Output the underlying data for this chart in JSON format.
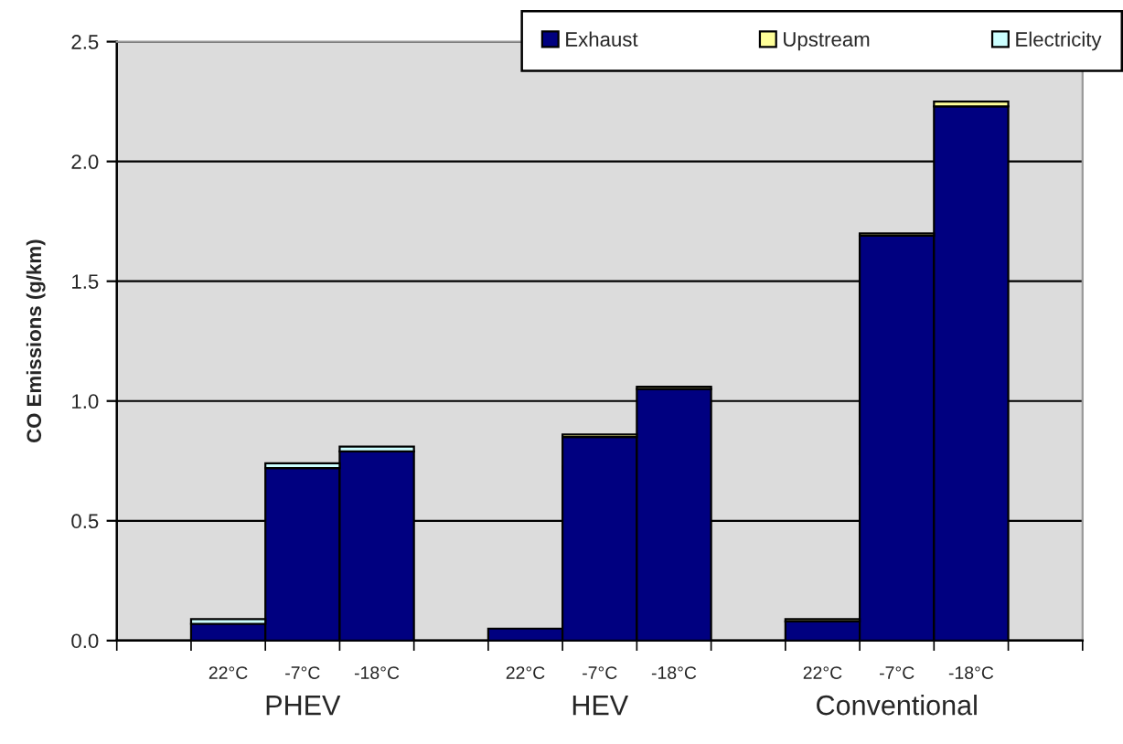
{
  "chart_data": {
    "type": "bar",
    "stacked": true,
    "ylabel": "CO Emissions (g/km)",
    "categories": [
      null,
      "22°C",
      "-7°C",
      "-18°C",
      null,
      "22°C",
      "-7°C",
      "-18°C",
      null,
      "22°C",
      "-7°C",
      "-18°C",
      null
    ],
    "series": [
      {
        "name": "Exhaust",
        "color": "#000080",
        "values": [
          null,
          0.07,
          0.72,
          0.79,
          null,
          0.05,
          0.85,
          1.05,
          null,
          0.08,
          1.69,
          2.23,
          null
        ]
      },
      {
        "name": "Upstream",
        "color": "#ffff99",
        "values": [
          null,
          null,
          null,
          null,
          null,
          null,
          0.01,
          0.01,
          null,
          0.01,
          0.01,
          0.02,
          null
        ]
      },
      {
        "name": "Electricity",
        "color": "#ccffff",
        "values": [
          null,
          0.02,
          0.02,
          0.02,
          null,
          null,
          null,
          null,
          null,
          null,
          null,
          null,
          null
        ]
      }
    ],
    "ylim": [
      0,
      2.5
    ],
    "yticks": [
      {
        "value": 0,
        "label": "0.0"
      },
      {
        "value": 0.5,
        "label": "0.5"
      },
      {
        "value": 1,
        "label": "1.0"
      },
      {
        "value": 1.5,
        "label": "1.5"
      },
      {
        "value": 2,
        "label": "2.0"
      },
      {
        "value": 2.5,
        "label": "2.5"
      }
    ],
    "annotations": [
      "PHEV",
      "HEV",
      "Conventional"
    ],
    "grid": "y",
    "legend": "top right"
  }
}
